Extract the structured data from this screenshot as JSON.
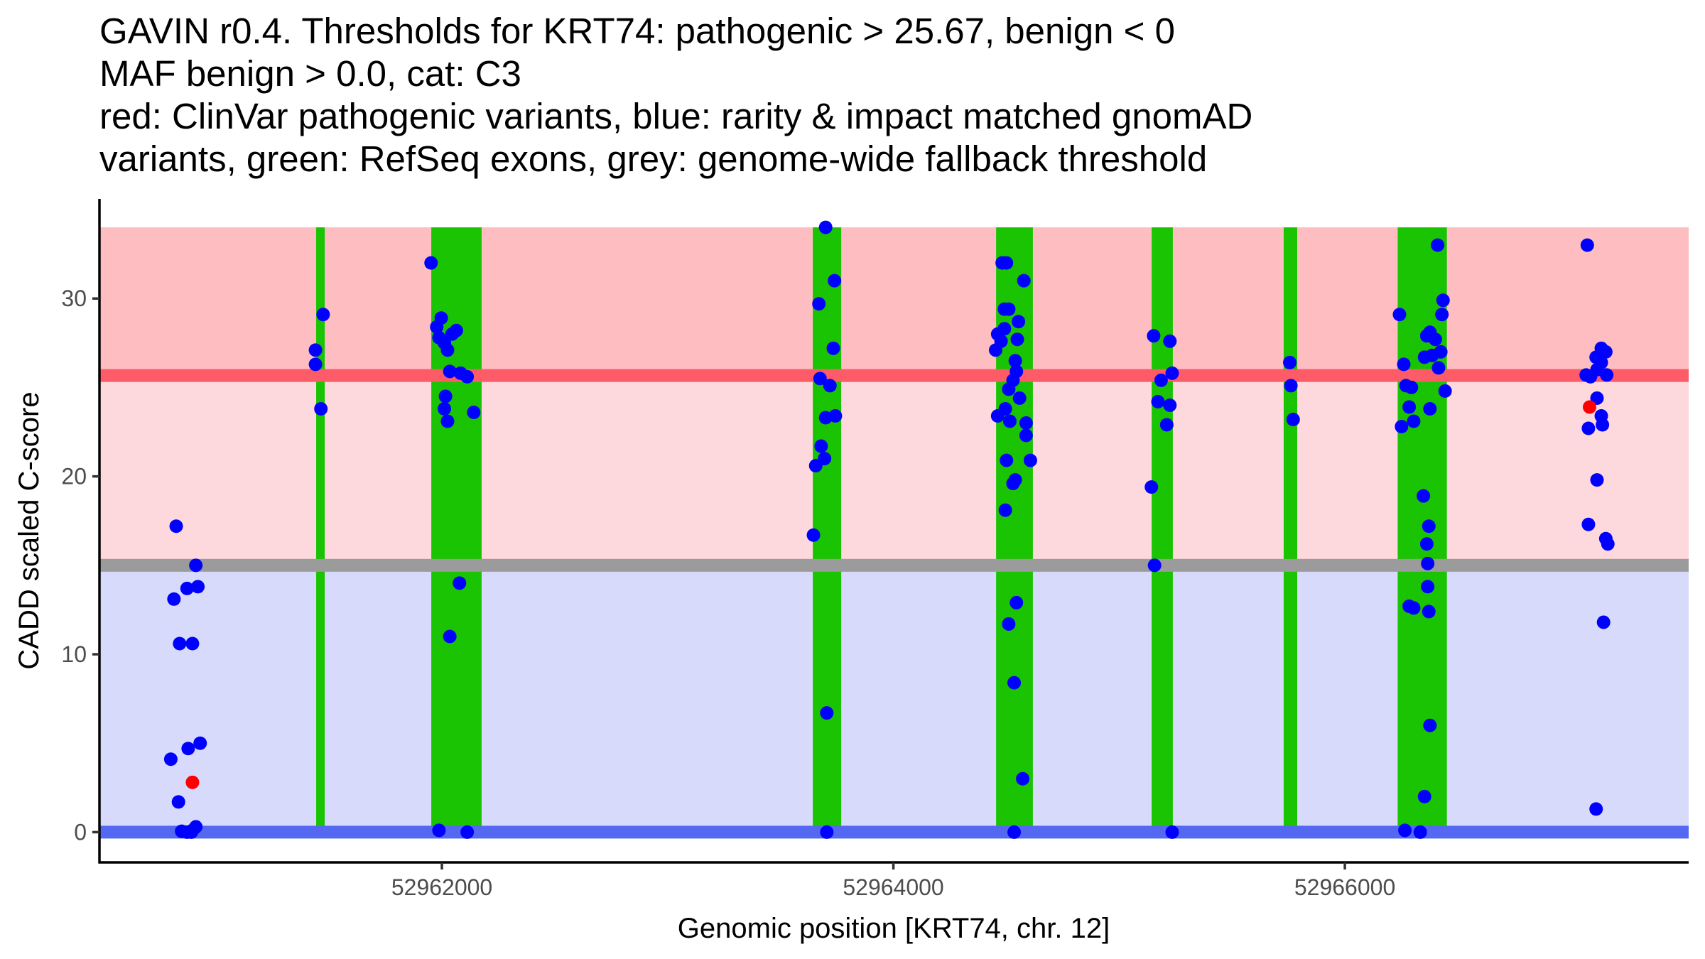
{
  "chart_data": {
    "type": "scatter",
    "title_lines": [
      "GAVIN r0.4. Thresholds for KRT74: pathogenic > 25.67, benign < 0",
      "MAF benign > 0.0, cat: C3",
      "red: ClinVar pathogenic variants, blue: rarity & impact matched gnomAD",
      "variants, green: RefSeq exons, grey: genome-wide fallback threshold"
    ],
    "xlabel": "Genomic position [KRT74, chr. 12]",
    "ylabel": "CADD scaled C-score",
    "xlim": [
      52960483,
      52967523
    ],
    "ylim": [
      -1.7,
      35.6
    ],
    "x_ticks": [
      52962000,
      52964000,
      52966000
    ],
    "x_tick_labels": [
      "52962000",
      "52964000",
      "52966000"
    ],
    "y_ticks": [
      0,
      10,
      20,
      30
    ],
    "y_tick_labels": [
      "0",
      "10",
      "20",
      "30"
    ],
    "grid": false,
    "thresholds": {
      "pathogenic": 25.67,
      "benign": 0,
      "genome_wide_fallback": 15,
      "band_top": 34
    },
    "colors": {
      "pathogenic_band": "#FDBDC1",
      "vus_band": "#FDD8DC",
      "benign_band": "#D7DAFA",
      "pathogenic_line": "#FC5B67",
      "fallback_line": "#9B9B9B",
      "benign_line": "#5468F2",
      "exon": "#1BC403",
      "gnomad_point": "#0000FF",
      "clinvar_point": "#FF0000",
      "axis": "#000000"
    },
    "exons": [
      {
        "start": 52961443,
        "end": 52961481
      },
      {
        "start": 52961953,
        "end": 52962176
      },
      {
        "start": 52963643,
        "end": 52963769
      },
      {
        "start": 52964455,
        "end": 52964618
      },
      {
        "start": 52965144,
        "end": 52965238
      },
      {
        "start": 52965729,
        "end": 52965789
      },
      {
        "start": 52966234,
        "end": 52966452
      }
    ],
    "series": [
      {
        "name": "ClinVar pathogenic variants",
        "color": "#FF0000",
        "points": [
          [
            52960895,
            2.8
          ],
          [
            52967084,
            23.9
          ]
        ]
      },
      {
        "name": "gnomAD matched variants",
        "color": "#0000FF",
        "points": [
          [
            52960823,
            17.2
          ],
          [
            52960910,
            15.0
          ],
          [
            52960813,
            13.1
          ],
          [
            52960871,
            13.7
          ],
          [
            52960919,
            13.8
          ],
          [
            52960838,
            10.6
          ],
          [
            52960895,
            10.6
          ],
          [
            52960799,
            4.1
          ],
          [
            52960876,
            4.7
          ],
          [
            52960929,
            5.0
          ],
          [
            52960833,
            1.7
          ],
          [
            52960847,
            0.05
          ],
          [
            52960871,
            0.0
          ],
          [
            52960895,
            0.1
          ],
          [
            52960910,
            0.3
          ],
          [
            52960890,
            0.0
          ],
          [
            52961440,
            27.1
          ],
          [
            52961440,
            26.3
          ],
          [
            52961474,
            29.1
          ],
          [
            52961464,
            23.8
          ],
          [
            52961952,
            32.0
          ],
          [
            52961977,
            28.4
          ],
          [
            52961997,
            28.9
          ],
          [
            52961987,
            27.8
          ],
          [
            52962011,
            27.5
          ],
          [
            52962025,
            27.1
          ],
          [
            52962045,
            28.0
          ],
          [
            52962064,
            28.2
          ],
          [
            52962035,
            25.9
          ],
          [
            52962083,
            25.8
          ],
          [
            52962112,
            25.6
          ],
          [
            52962016,
            24.5
          ],
          [
            52962011,
            23.8
          ],
          [
            52962025,
            23.1
          ],
          [
            52962141,
            23.6
          ],
          [
            52962078,
            14.0
          ],
          [
            52962035,
            11.0
          ],
          [
            52961987,
            0.1
          ],
          [
            52962112,
            0.0
          ],
          [
            52963700,
            34.0
          ],
          [
            52963739,
            31.0
          ],
          [
            52963670,
            29.7
          ],
          [
            52963734,
            27.2
          ],
          [
            52963675,
            25.5
          ],
          [
            52963719,
            25.1
          ],
          [
            52963700,
            23.3
          ],
          [
            52963743,
            23.4
          ],
          [
            52963680,
            21.7
          ],
          [
            52963695,
            21.0
          ],
          [
            52963656,
            20.6
          ],
          [
            52963646,
            16.7
          ],
          [
            52963705,
            6.7
          ],
          [
            52963705,
            0.0
          ],
          [
            52964482,
            32.0
          ],
          [
            52964501,
            32.0
          ],
          [
            52964578,
            31.0
          ],
          [
            52964492,
            29.4
          ],
          [
            52964511,
            29.4
          ],
          [
            52964554,
            28.7
          ],
          [
            52964492,
            28.3
          ],
          [
            52964462,
            28.0
          ],
          [
            52964477,
            27.6
          ],
          [
            52964549,
            27.7
          ],
          [
            52964453,
            27.1
          ],
          [
            52964540,
            26.5
          ],
          [
            52964545,
            25.9
          ],
          [
            52964530,
            25.4
          ],
          [
            52964511,
            24.9
          ],
          [
            52964559,
            24.4
          ],
          [
            52964496,
            23.8
          ],
          [
            52964516,
            23.1
          ],
          [
            52964588,
            23.0
          ],
          [
            52964462,
            23.4
          ],
          [
            52964588,
            22.3
          ],
          [
            52964501,
            20.9
          ],
          [
            52964607,
            20.9
          ],
          [
            52964540,
            19.8
          ],
          [
            52964530,
            19.6
          ],
          [
            52964496,
            18.1
          ],
          [
            52964545,
            12.9
          ],
          [
            52964511,
            11.7
          ],
          [
            52964535,
            8.4
          ],
          [
            52964573,
            3.0
          ],
          [
            52964535,
            0.0
          ],
          [
            52965153,
            27.9
          ],
          [
            52965225,
            27.6
          ],
          [
            52965186,
            25.4
          ],
          [
            52965235,
            25.8
          ],
          [
            52965172,
            24.2
          ],
          [
            52965225,
            24.0
          ],
          [
            52965211,
            22.9
          ],
          [
            52965143,
            19.4
          ],
          [
            52965157,
            15.0
          ],
          [
            52965235,
            0.0
          ],
          [
            52965756,
            26.4
          ],
          [
            52965761,
            25.1
          ],
          [
            52965771,
            23.2
          ],
          [
            52966411,
            33.0
          ],
          [
            52966435,
            29.9
          ],
          [
            52966242,
            29.1
          ],
          [
            52966430,
            29.1
          ],
          [
            52966377,
            28.1
          ],
          [
            52966363,
            27.9
          ],
          [
            52966401,
            27.7
          ],
          [
            52966353,
            26.7
          ],
          [
            52966387,
            26.8
          ],
          [
            52966425,
            27.0
          ],
          [
            52966261,
            26.3
          ],
          [
            52966415,
            26.1
          ],
          [
            52966271,
            25.1
          ],
          [
            52966295,
            25.0
          ],
          [
            52966444,
            24.8
          ],
          [
            52966285,
            23.9
          ],
          [
            52966377,
            23.8
          ],
          [
            52966305,
            23.1
          ],
          [
            52966251,
            22.8
          ],
          [
            52966348,
            18.9
          ],
          [
            52966372,
            17.2
          ],
          [
            52966363,
            16.2
          ],
          [
            52966367,
            15.1
          ],
          [
            52966367,
            13.8
          ],
          [
            52966285,
            12.7
          ],
          [
            52966305,
            12.6
          ],
          [
            52966372,
            12.4
          ],
          [
            52966377,
            6.0
          ],
          [
            52966353,
            2.0
          ],
          [
            52966266,
            0.1
          ],
          [
            52966334,
            0.0
          ],
          [
            52967074,
            33.0
          ],
          [
            52967113,
            26.7
          ],
          [
            52967136,
            26.4
          ],
          [
            52967117,
            26.0
          ],
          [
            52967088,
            25.6
          ],
          [
            52967069,
            25.7
          ],
          [
            52967160,
            25.7
          ],
          [
            52967136,
            27.2
          ],
          [
            52967156,
            27.0
          ],
          [
            52967117,
            24.4
          ],
          [
            52967136,
            23.4
          ],
          [
            52967141,
            22.9
          ],
          [
            52967079,
            22.7
          ],
          [
            52967117,
            19.8
          ],
          [
            52967079,
            17.3
          ],
          [
            52967156,
            16.5
          ],
          [
            52967165,
            16.2
          ],
          [
            52967146,
            11.8
          ],
          [
            52967113,
            1.3
          ]
        ]
      }
    ]
  }
}
